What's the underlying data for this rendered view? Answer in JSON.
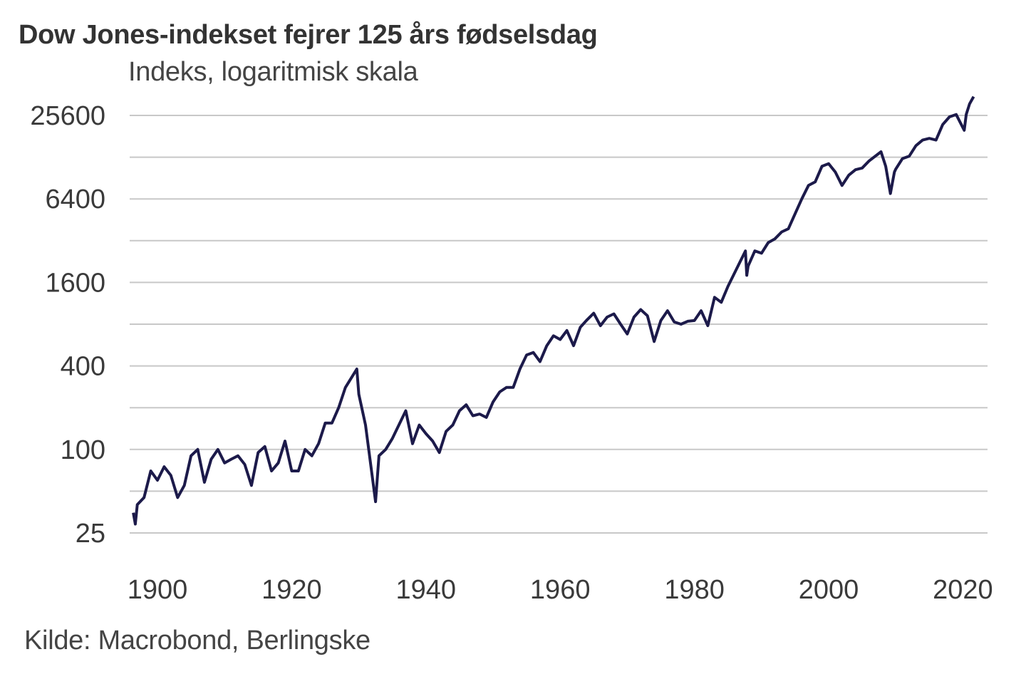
{
  "chart_data": {
    "type": "line",
    "title": "Dow Jones-indekset fejrer 125 års fødselsdag",
    "subtitle": "Indeks, logaritmisk skala",
    "source": "Kilde: Macrobond, Berlingske",
    "y_scale": "log2",
    "ylim": [
      25,
      35000
    ],
    "xlim": [
      1896,
      2022
    ],
    "grid": true,
    "line_color": "#1c1a4a",
    "grid_color": "#c8c8c8",
    "y_ticks": [
      25,
      100,
      400,
      1600,
      6400,
      25600
    ],
    "y_tick_labels": [
      "25",
      "100",
      "400",
      "1600",
      "6400",
      "25600"
    ],
    "y_gridlines": [
      25,
      50,
      100,
      200,
      400,
      800,
      1600,
      3200,
      6400,
      12800,
      25600
    ],
    "x_ticks": [
      1900,
      1920,
      1940,
      1960,
      1980,
      2000,
      2020
    ],
    "x_tick_labels": [
      "1900",
      "1920",
      "1940",
      "1960",
      "1980",
      "2000",
      "2020"
    ],
    "series": [
      {
        "x": [
          1896.4,
          1896.7,
          1897,
          1898,
          1899,
          1900,
          1901,
          1902,
          1903,
          1904,
          1905,
          1906,
          1907,
          1908,
          1909,
          1910,
          1911,
          1912,
          1913,
          1914,
          1915,
          1916,
          1917,
          1918,
          1919,
          1920,
          1921,
          1922,
          1923,
          1924,
          1925,
          1926,
          1927,
          1928,
          1929.7,
          1930,
          1931,
          1932.5,
          1933,
          1934,
          1935,
          1937,
          1938,
          1939,
          1940,
          1941,
          1942,
          1943,
          1944,
          1945,
          1946,
          1947,
          1948,
          1949,
          1950,
          1951,
          1952,
          1953,
          1954,
          1955,
          1956,
          1957,
          1958,
          1959,
          1960,
          1961,
          1962,
          1963,
          1964,
          1965,
          1966,
          1967,
          1968,
          1969,
          1970,
          1971,
          1972,
          1973,
          1974,
          1975,
          1976,
          1977,
          1978,
          1979,
          1980,
          1981,
          1982,
          1983,
          1984,
          1985,
          1987.6,
          1987.8,
          1988,
          1989,
          1990,
          1991,
          1992,
          1993,
          1994,
          1995,
          1996,
          1997,
          1998,
          1999,
          2000,
          2001,
          2002,
          2003,
          2004,
          2005,
          2006,
          2007.8,
          2008.5,
          2009.2,
          2009.8,
          2010,
          2011,
          2012,
          2013,
          2014,
          2015,
          2016,
          2017,
          2018,
          2019,
          2020.2,
          2020.5,
          2021,
          2021.6
        ],
        "values": [
          35,
          29,
          40,
          45,
          70,
          60,
          75,
          65,
          45,
          55,
          90,
          100,
          58,
          85,
          100,
          80,
          85,
          90,
          78,
          55,
          95,
          105,
          70,
          80,
          115,
          70,
          70,
          100,
          90,
          110,
          155,
          155,
          200,
          280,
          380,
          250,
          150,
          42,
          90,
          100,
          120,
          190,
          110,
          150,
          130,
          115,
          95,
          135,
          150,
          190,
          210,
          175,
          180,
          170,
          220,
          260,
          280,
          280,
          380,
          480,
          500,
          430,
          560,
          660,
          620,
          720,
          560,
          760,
          860,
          960,
          780,
          900,
          950,
          800,
          680,
          900,
          1020,
          920,
          600,
          850,
          1000,
          830,
          800,
          840,
          850,
          1000,
          780,
          1250,
          1150,
          1500,
          2700,
          1800,
          2100,
          2700,
          2600,
          3100,
          3300,
          3700,
          3900,
          5000,
          6400,
          8000,
          8500,
          11000,
          11500,
          10000,
          8000,
          9500,
          10400,
          10700,
          12000,
          14000,
          11000,
          7000,
          10000,
          10500,
          12500,
          13000,
          15500,
          17000,
          17500,
          17000,
          22000,
          25000,
          26000,
          20000,
          26000,
          31000,
          35000
        ]
      }
    ]
  }
}
